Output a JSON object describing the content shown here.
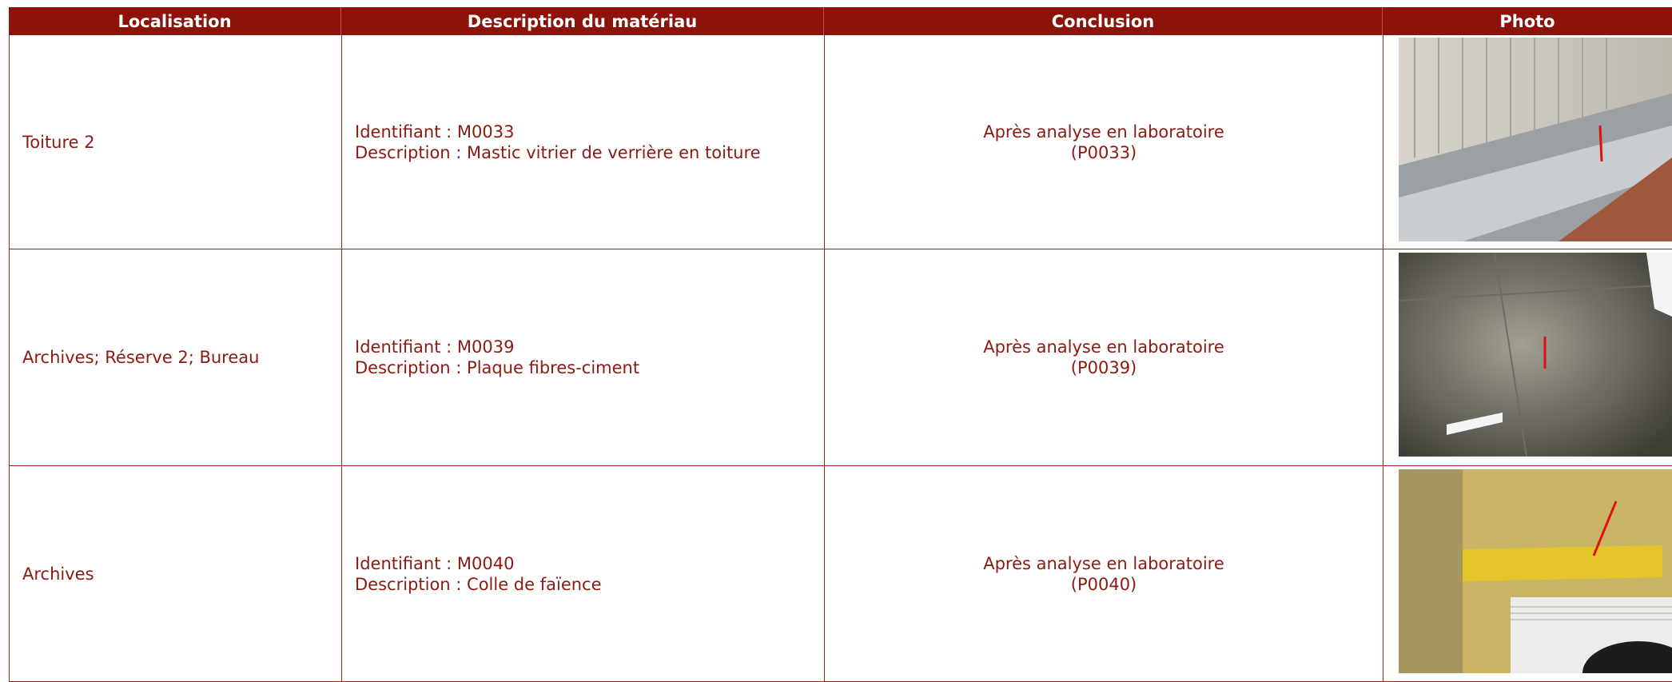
{
  "table": {
    "headers": [
      "Localisation",
      "Description du matériau",
      "Conclusion",
      "Photo"
    ],
    "rows": [
      {
        "location": "Toiture 2",
        "identifier": "Identifiant : M0033",
        "description": "Description : Mastic vitrier de verrière en toiture",
        "conclusion": [
          "Après analyse en laboratoire",
          "(P0033)"
        ]
      },
      {
        "location": "Archives; Réserve  2; Bureau",
        "identifier": "Identifiant : M0039",
        "description": "Description : Plaque fibres-ciment",
        "conclusion": [
          "Après analyse en laboratoire",
          "(P0039)"
        ]
      },
      {
        "location": "Archives",
        "identifier": "Identifiant : M0040",
        "description": "Description : Colle de faïence",
        "conclusion": [
          "Après analyse en laboratoire",
          "(P0040)"
        ]
      }
    ]
  }
}
